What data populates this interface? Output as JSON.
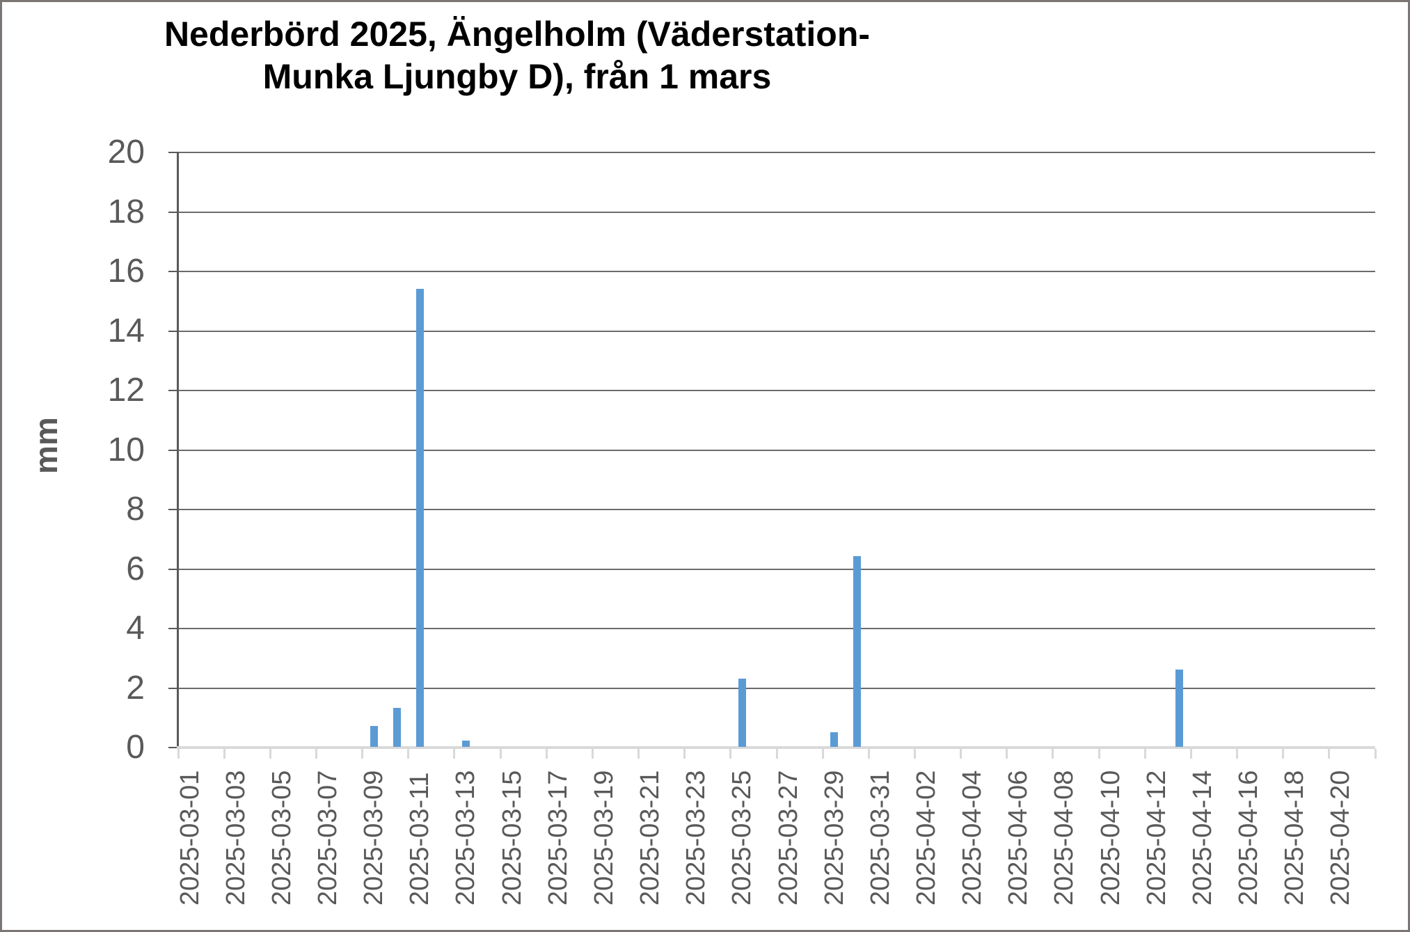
{
  "window": {
    "background_color": "#ffffff",
    "border_color": "#7b7674"
  },
  "chart_data": {
    "type": "bar",
    "title": "Nederbörd 2025, Ängelholm (Väderstation-Munka Ljungby D), från 1 mars",
    "title_lines": [
      "Nederbörd 2025, Ängelholm (Väderstation-",
      "Munka Ljungby D), från 1 mars"
    ],
    "xlabel": "",
    "ylabel": "mm",
    "ylim": [
      0,
      20
    ],
    "yticks": [
      0,
      2,
      4,
      6,
      8,
      10,
      12,
      14,
      16,
      18,
      20
    ],
    "x_tick_label_step": 2,
    "grid": true,
    "legend": false,
    "bar_color": "#5b9bd5",
    "gridline_color": "#6b6b6b",
    "y_axis_line_color": "#595959",
    "x_axis_line_color": "#d9d9d9",
    "tick_label_color": "#595959",
    "title_color": "#000000",
    "categories": [
      "2025-03-01",
      "2025-03-02",
      "2025-03-03",
      "2025-03-04",
      "2025-03-05",
      "2025-03-06",
      "2025-03-07",
      "2025-03-08",
      "2025-03-09",
      "2025-03-10",
      "2025-03-11",
      "2025-03-12",
      "2025-03-13",
      "2025-03-14",
      "2025-03-15",
      "2025-03-16",
      "2025-03-17",
      "2025-03-18",
      "2025-03-19",
      "2025-03-20",
      "2025-03-21",
      "2025-03-22",
      "2025-03-23",
      "2025-03-24",
      "2025-03-25",
      "2025-03-26",
      "2025-03-27",
      "2025-03-28",
      "2025-03-29",
      "2025-03-30",
      "2025-03-31",
      "2025-04-01",
      "2025-04-02",
      "2025-04-03",
      "2025-04-04",
      "2025-04-05",
      "2025-04-06",
      "2025-04-07",
      "2025-04-08",
      "2025-04-09",
      "2025-04-10",
      "2025-04-11",
      "2025-04-12",
      "2025-04-13",
      "2025-04-14",
      "2025-04-15",
      "2025-04-16",
      "2025-04-17",
      "2025-04-18",
      "2025-04-19",
      "2025-04-20",
      "2025-04-21"
    ],
    "values": [
      0,
      0,
      0,
      0,
      0,
      0,
      0,
      0,
      0.7,
      1.3,
      15.4,
      0,
      0.2,
      0,
      0,
      0,
      0,
      0,
      0,
      0,
      0,
      0,
      0,
      0,
      2.3,
      0,
      0,
      0,
      0.5,
      6.4,
      0,
      0,
      0,
      0,
      0,
      0,
      0,
      0,
      0,
      0,
      0,
      0,
      0,
      2.6,
      0,
      0,
      0,
      0,
      0,
      0,
      0,
      0
    ]
  }
}
